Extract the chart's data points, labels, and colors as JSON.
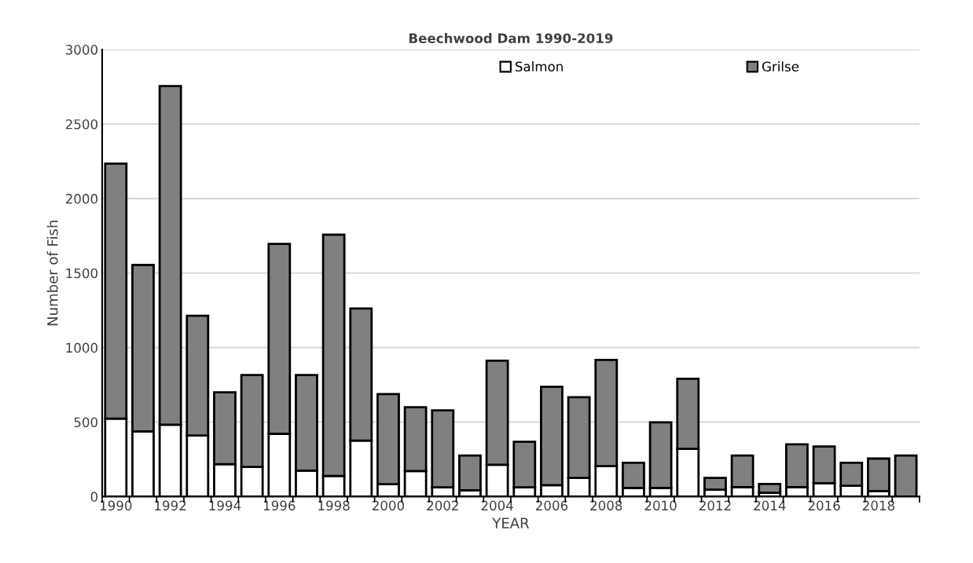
{
  "chart_data": {
    "type": "bar",
    "title": "Beechwood Dam 1990-2019",
    "xlabel": "YEAR",
    "ylabel": "Number of Fish",
    "categories": [
      "1990",
      null,
      "1992",
      null,
      "1994",
      null,
      "1996",
      null,
      "1998",
      null,
      "2000",
      null,
      "2002",
      null,
      "2004",
      null,
      "2006",
      null,
      "2008",
      null,
      "2010",
      null,
      "2012",
      null,
      "2014",
      null,
      "2016",
      null,
      "2018",
      null
    ],
    "stacked": true,
    "series": [
      {
        "name": "Salmon",
        "color": "#ffffff",
        "values": [
          523,
          437,
          482,
          410,
          218,
          199,
          421,
          174,
          139,
          375,
          83,
          171,
          62,
          42,
          213,
          62,
          76,
          125,
          204,
          58,
          58,
          320,
          46,
          63,
          25,
          63,
          90,
          72,
          37,
          null
        ]
      },
      {
        "name": "Grilse",
        "color": "#808080",
        "values": [
          1711,
          1117,
          2273,
          804,
          482,
          616,
          1275,
          641,
          1618,
          887,
          605,
          429,
          517,
          233,
          699,
          306,
          660,
          542,
          713,
          169,
          440,
          470,
          79,
          212,
          59,
          287,
          246,
          155,
          218,
          276
        ]
      }
    ],
    "ylim": [
      0,
      3000
    ],
    "yticks": [
      0,
      500,
      1000,
      1500,
      2000,
      2500,
      3000
    ],
    "grid": "y",
    "legend": "top"
  }
}
